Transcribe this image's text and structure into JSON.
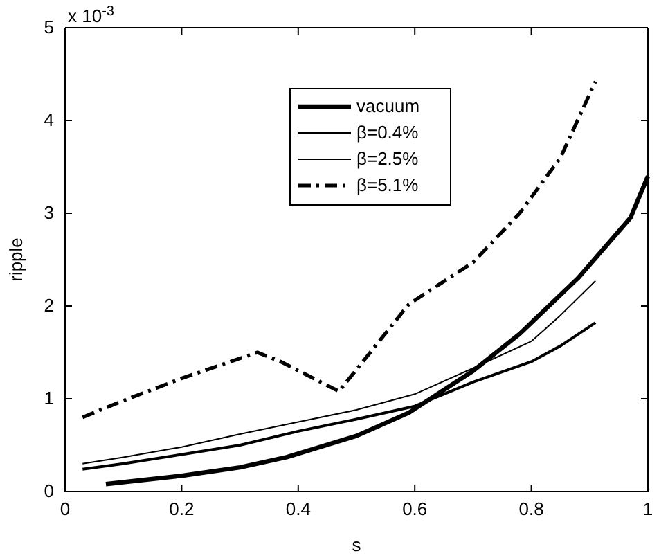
{
  "chart_data": {
    "type": "line",
    "xlabel": "s",
    "ylabel": "ripple",
    "xlim": [
      0,
      1
    ],
    "xticks": [
      0,
      0.2,
      0.4,
      0.6,
      0.8,
      1
    ],
    "ylim": [
      0,
      5
    ],
    "yticks": [
      0,
      1,
      2,
      3,
      4,
      5
    ],
    "annotations": [
      "x 10$^{-3}$"
    ],
    "legend": "top",
    "grid": false,
    "series": [
      {
        "name": "vacuum",
        "color": "#000000",
        "line_style": "solid",
        "x": [
          0.07,
          0.2,
          0.3,
          0.38,
          0.5,
          0.59,
          0.7,
          0.78,
          0.88,
          0.97,
          1.0
        ],
        "values": [
          0.08,
          0.17,
          0.26,
          0.37,
          0.6,
          0.85,
          1.3,
          1.7,
          2.3,
          2.95,
          3.4
        ]
      },
      {
        "name": "β=0.4%",
        "color": "#000000",
        "line_style": "solid",
        "x": [
          0.03,
          0.1,
          0.2,
          0.3,
          0.4,
          0.5,
          0.6,
          0.7,
          0.8,
          0.85,
          0.91
        ],
        "values": [
          0.24,
          0.3,
          0.4,
          0.5,
          0.65,
          0.78,
          0.92,
          1.18,
          1.4,
          1.57,
          1.82
        ]
      },
      {
        "name": "β=2.5%",
        "color": "#000000",
        "line_style": "solid",
        "x": [
          0.03,
          0.1,
          0.2,
          0.3,
          0.4,
          0.5,
          0.6,
          0.7,
          0.8,
          0.85,
          0.91
        ],
        "values": [
          0.3,
          0.37,
          0.48,
          0.62,
          0.75,
          0.88,
          1.05,
          1.33,
          1.62,
          1.9,
          2.27
        ]
      },
      {
        "name": "β=5.1%",
        "color": "#000000",
        "line_style": "dashed",
        "x": [
          0.03,
          0.1,
          0.2,
          0.33,
          0.37,
          0.47,
          0.59,
          0.7,
          0.78,
          0.85,
          0.91
        ],
        "values": [
          0.8,
          0.98,
          1.22,
          1.5,
          1.4,
          1.08,
          2.02,
          2.47,
          3.0,
          3.6,
          4.42
        ]
      }
    ]
  }
}
